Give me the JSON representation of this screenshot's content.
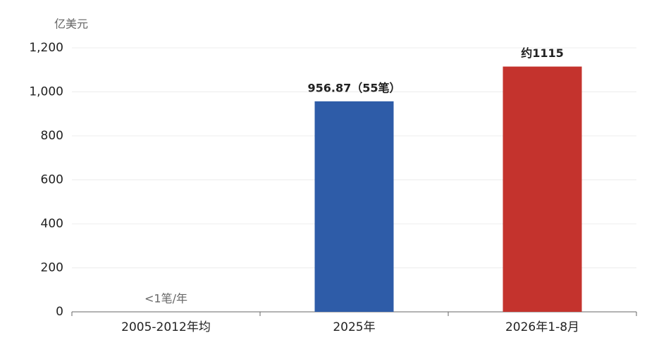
{
  "chart_data": {
    "type": "bar",
    "y_unit": "亿美元",
    "categories": [
      "2005-2012年均",
      "2025年",
      "2026年1-8月"
    ],
    "values": [
      0,
      956.87,
      1115
    ],
    "value_labels": [
      "<1笔/年",
      "956.87（55笔）",
      "约1115"
    ],
    "colors": [
      "#2e5ca8",
      "#2e5ca8",
      "#c4332d"
    ],
    "ylim": [
      0,
      1200
    ],
    "yticks": [
      0,
      200,
      400,
      600,
      800,
      {
        "value": 1000,
        "label": "1,000"
      },
      {
        "value": 1200,
        "label": "1,200"
      }
    ],
    "grid": true
  }
}
